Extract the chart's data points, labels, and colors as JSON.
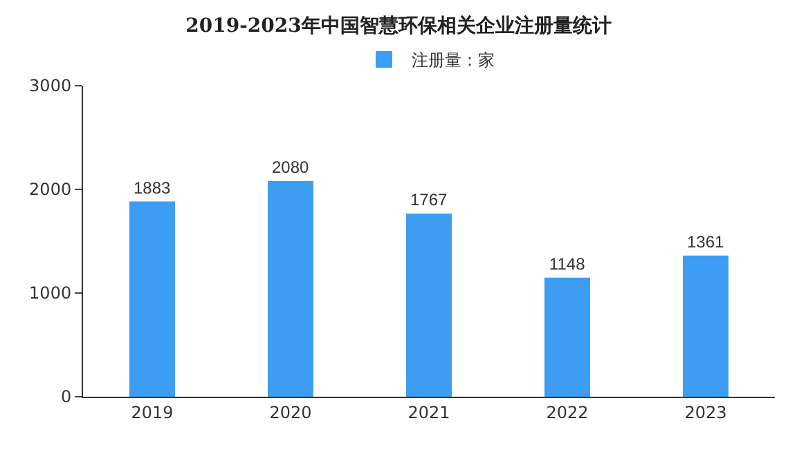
{
  "chart_data": {
    "type": "bar",
    "title": "2019-2023年中国智慧环保相关企业注册量统计",
    "categories": [
      "2019",
      "2020",
      "2021",
      "2022",
      "2023"
    ],
    "series": [
      {
        "name": "注册量：家",
        "color": "#3d9df2",
        "values": [
          1883,
          2080,
          1767,
          1148,
          1361
        ]
      }
    ],
    "ylim": [
      0,
      3000
    ],
    "yticks": [
      0,
      1000,
      2000,
      3000
    ],
    "grid": false,
    "legend": "top",
    "data_labels": true
  }
}
